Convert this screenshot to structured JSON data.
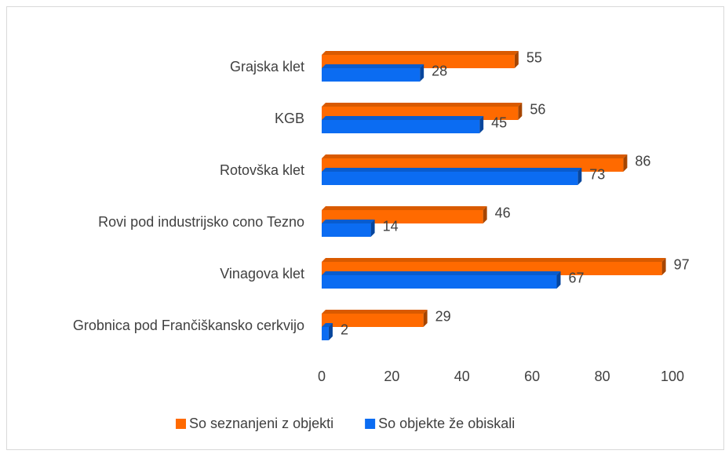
{
  "chart_data": {
    "type": "bar",
    "orientation": "horizontal",
    "categories": [
      "Grajska klet",
      "KGB",
      "Rotovška klet",
      "Rovi pod industrijsko cono Tezno",
      "Vinagova klet",
      "Grobnica pod Frančiškansko cerkvijo"
    ],
    "series": [
      {
        "name": "So seznanjeni z objekti",
        "color": "#ff6a00",
        "values": [
          55,
          56,
          86,
          46,
          97,
          29
        ]
      },
      {
        "name": "So objekte že obiskali",
        "color": "#0b6cf2",
        "values": [
          28,
          45,
          73,
          14,
          67,
          2
        ]
      }
    ],
    "xlim": [
      0,
      100
    ],
    "xticks": [
      0,
      20,
      40,
      60,
      80,
      100
    ],
    "legend": "bottom"
  }
}
